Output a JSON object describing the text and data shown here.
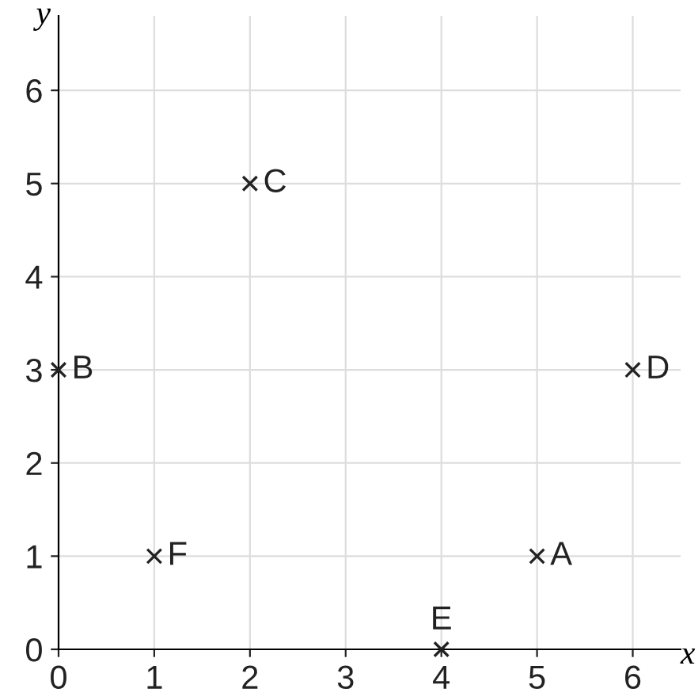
{
  "chart_data": {
    "type": "scatter",
    "xlabel": "x",
    "ylabel": "y",
    "x": [
      5,
      0,
      2,
      6,
      4,
      1
    ],
    "series": [
      {
        "color": "#222222",
        "values": [
          1,
          3,
          5,
          3,
          0,
          1
        ]
      }
    ],
    "marker": "cross",
    "annotations": [
      {
        "text": "A",
        "x": 5,
        "y": 1
      },
      {
        "text": "B",
        "x": 0,
        "y": 3
      },
      {
        "text": "C",
        "x": 2,
        "y": 5
      },
      {
        "text": "D",
        "x": 6,
        "y": 3
      },
      {
        "text": "E",
        "x": 4,
        "y": 0
      },
      {
        "text": "F",
        "x": 1,
        "y": 1
      }
    ],
    "xlim": [
      0,
      6.5
    ],
    "ylim": [
      0,
      6.8
    ],
    "xticks": [
      0,
      1,
      2,
      3,
      4,
      5,
      6
    ],
    "yticks": [
      0,
      1,
      2,
      3,
      4,
      5,
      6
    ],
    "grid": true
  }
}
